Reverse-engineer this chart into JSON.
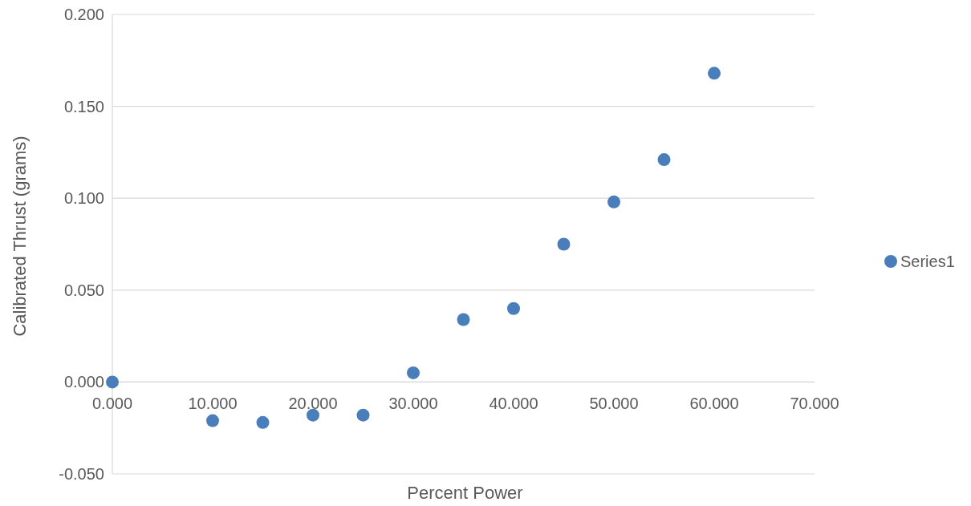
{
  "chart_data": {
    "type": "scatter",
    "xlabel": "Percent Power",
    "ylabel": "Calibrated Thrust (grams)",
    "xlim": [
      0,
      70
    ],
    "xticks": [
      {
        "value": 0,
        "label": "0.000"
      },
      {
        "value": 10,
        "label": "10.000"
      },
      {
        "value": 20,
        "label": "20.000"
      },
      {
        "value": 30,
        "label": "30.000"
      },
      {
        "value": 40,
        "label": "40.000"
      },
      {
        "value": 50,
        "label": "50.000"
      },
      {
        "value": 60,
        "label": "60.000"
      },
      {
        "value": 70,
        "label": "70.000"
      }
    ],
    "ylim": [
      -0.05,
      0.2
    ],
    "yticks": [
      {
        "value": -0.05,
        "label": "-0.050"
      },
      {
        "value": 0,
        "label": "0.000"
      },
      {
        "value": 0.05,
        "label": "0.050"
      },
      {
        "value": 0.1,
        "label": "0.100"
      },
      {
        "value": 0.15,
        "label": "0.150"
      },
      {
        "value": 0.2,
        "label": "0.200"
      }
    ],
    "grid": "y",
    "legend": "right",
    "marker": "circle",
    "series": [
      {
        "name": "Series1",
        "color": "#4a7ebb",
        "x": [
          0,
          10,
          15,
          20,
          25,
          30,
          35,
          40,
          45,
          50,
          55,
          60
        ],
        "values": [
          0.0,
          -0.021,
          -0.022,
          -0.018,
          -0.018,
          0.005,
          0.034,
          0.04,
          0.075,
          0.098,
          0.121,
          0.168
        ]
      }
    ]
  }
}
